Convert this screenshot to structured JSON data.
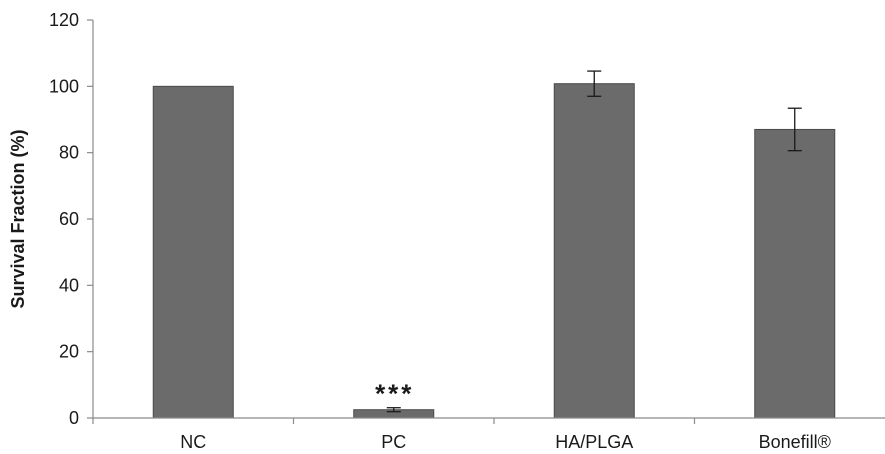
{
  "chart_data": {
    "type": "bar",
    "title": "",
    "xlabel": "",
    "ylabel": "Survival Fraction (%)",
    "ylim": [
      0,
      120
    ],
    "yticks": [
      0,
      20,
      40,
      60,
      80,
      100,
      120
    ],
    "grid": false,
    "legend": "none",
    "categories": [
      "NC",
      "PC",
      "HA/PLGA",
      "Bonefill®"
    ],
    "values": [
      100,
      2.5,
      100.8,
      87
    ],
    "errors": [
      0,
      0.6,
      3.8,
      6.4
    ],
    "annotations": [
      "",
      "***",
      "",
      ""
    ],
    "colors": {
      "bar_fill": "#6b6b6c",
      "bar_edge": "#4a4a4b",
      "axis": "#8a8a8a",
      "text": "#1a1a1a"
    }
  }
}
